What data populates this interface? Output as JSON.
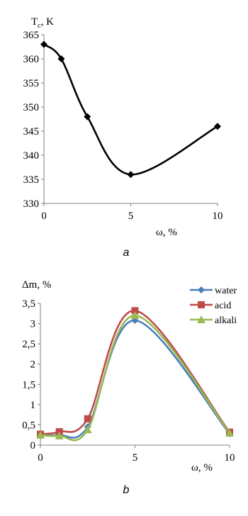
{
  "chart_data": [
    {
      "type": "line",
      "ylabel_base": "T",
      "ylabel_sub": "c",
      "ylabel_rest": ", K",
      "xlabel": "ω, %",
      "caption": "a",
      "xlim": [
        0,
        10
      ],
      "ylim": [
        330,
        365
      ],
      "x_ticks": [
        "0",
        "5",
        "10"
      ],
      "y_ticks": [
        "330",
        "335",
        "340",
        "345",
        "350",
        "355",
        "360",
        "365"
      ],
      "grid": false,
      "series": [
        {
          "color": "#000000",
          "marker": "diamond",
          "points": [
            [
              0,
              363
            ],
            [
              1,
              360
            ],
            [
              2.5,
              348
            ],
            [
              5,
              336
            ],
            [
              10,
              346
            ]
          ]
        }
      ]
    },
    {
      "type": "line",
      "ylabel": "Δm, %",
      "xlabel": "ω, %",
      "caption": "b",
      "xlim": [
        0,
        10
      ],
      "ylim": [
        0,
        3.5
      ],
      "x_ticks": [
        "0",
        "5",
        "10"
      ],
      "y_ticks": [
        "0",
        "0,5",
        "1",
        "1,5",
        "2",
        "2,5",
        "3",
        "3,5"
      ],
      "grid": false,
      "legend_position": "top-right",
      "series": [
        {
          "name": "water",
          "color": "#4A7EBB",
          "marker": "diamond",
          "points": [
            [
              0,
              0.27
            ],
            [
              1,
              0.25
            ],
            [
              2.5,
              0.45
            ],
            [
              5,
              3.08
            ],
            [
              10,
              0.28
            ]
          ]
        },
        {
          "name": "acid",
          "color": "#BE4B48",
          "marker": "square",
          "points": [
            [
              0,
              0.27
            ],
            [
              1,
              0.33
            ],
            [
              2.5,
              0.65
            ],
            [
              5,
              3.32
            ],
            [
              10,
              0.32
            ]
          ]
        },
        {
          "name": "alkali",
          "color": "#98B954",
          "marker": "triangle",
          "points": [
            [
              0,
              0.25
            ],
            [
              1,
              0.23
            ],
            [
              2.5,
              0.38
            ],
            [
              5,
              3.2
            ],
            [
              10,
              0.3
            ]
          ]
        }
      ]
    }
  ]
}
